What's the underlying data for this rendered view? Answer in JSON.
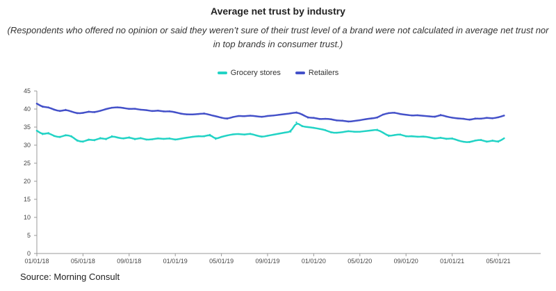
{
  "title": "Average net trust by industry",
  "subtitle": "(Respondents who offered no opinion or said they weren’t sure of their trust level of a brand were not calculated in average net trust nor in top brands in consumer trust.)",
  "source": "Source: Morning Consult",
  "colors": {
    "grocery": "#22d3c5",
    "retailers": "#4451c9",
    "axis": "#999999"
  },
  "legend": [
    {
      "name": "Grocery stores",
      "color": "#22d3c5"
    },
    {
      "name": "Retailers",
      "color": "#4451c9"
    }
  ],
  "chart_data": {
    "type": "line",
    "title": "Average net trust by industry",
    "xlabel": "",
    "ylabel": "",
    "ylim": [
      0,
      45
    ],
    "y_ticks": [
      0,
      5,
      10,
      15,
      20,
      25,
      30,
      35,
      40,
      45
    ],
    "x_tick_labels": [
      "01/01/18",
      "05/01/18",
      "09/01/18",
      "01/01/19",
      "05/01/19",
      "09/01/19",
      "01/01/20",
      "05/01/20",
      "09/01/20",
      "01/01/21",
      "05/01/21"
    ],
    "x_range_months": [
      0,
      40.5
    ],
    "grid": false,
    "legend_position": "top-center",
    "series": [
      {
        "name": "Grocery stores",
        "x_months": [
          0,
          0.5,
          1,
          1.5,
          2,
          2.5,
          3,
          3.5,
          4,
          4.5,
          5,
          5.5,
          6,
          6.5,
          7,
          7.5,
          8,
          8.5,
          9,
          9.5,
          10,
          10.5,
          11,
          11.5,
          12,
          12.5,
          13,
          13.5,
          14,
          14.5,
          15,
          15.5,
          16,
          16.5,
          17,
          17.5,
          18,
          18.5,
          19,
          19.5,
          20,
          20.5,
          21,
          21.5,
          22,
          22.5,
          23,
          23.5,
          24,
          24.5,
          25,
          25.5,
          26,
          26.5,
          27,
          27.5,
          28,
          28.5,
          29,
          29.5,
          30,
          30.5,
          31,
          31.5,
          32,
          32.5,
          33,
          33.5,
          34,
          34.5,
          35,
          35.5,
          36,
          36.5,
          37,
          37.5,
          38,
          38.5,
          39,
          39.5,
          40,
          40.5
        ],
        "values": [
          34,
          33,
          33.4,
          32.5,
          32.2,
          32.8,
          32.5,
          31.2,
          30.9,
          31.6,
          31.3,
          32,
          31.6,
          32.5,
          32.1,
          31.8,
          32.2,
          31.6,
          32,
          31.5,
          31.6,
          31.9,
          31.7,
          31.9,
          31.5,
          31.8,
          32.1,
          32.3,
          32.5,
          32.4,
          32.9,
          31.7,
          32.3,
          32.7,
          33,
          33.1,
          32.9,
          33.2,
          32.7,
          32.3,
          32.6,
          32.9,
          33.2,
          33.5,
          33.7,
          36.3,
          35.2,
          35,
          34.8,
          34.5,
          34.2,
          33.5,
          33.4,
          33.6,
          33.9,
          33.7,
          33.7,
          33.9,
          34.1,
          34.3,
          33.5,
          32.5,
          32.8,
          33,
          32.4,
          32.5,
          32.3,
          32.4,
          32.2,
          31.8,
          32.1,
          31.7,
          31.9,
          31.3,
          30.9,
          30.8,
          31.3,
          31.5,
          30.9,
          31.3,
          30.9,
          31.9
        ]
      },
      {
        "name": "Retailers",
        "x_months": [
          0,
          0.5,
          1,
          1.5,
          2,
          2.5,
          3,
          3.5,
          4,
          4.5,
          5,
          5.5,
          6,
          6.5,
          7,
          7.5,
          8,
          8.5,
          9,
          9.5,
          10,
          10.5,
          11,
          11.5,
          12,
          12.5,
          13,
          13.5,
          14,
          14.5,
          15,
          15.5,
          16,
          16.5,
          17,
          17.5,
          18,
          18.5,
          19,
          19.5,
          20,
          20.5,
          21,
          21.5,
          22,
          22.5,
          23,
          23.5,
          24,
          24.5,
          25,
          25.5,
          26,
          26.5,
          27,
          27.5,
          28,
          28.5,
          29,
          29.5,
          30,
          30.5,
          31,
          31.5,
          32,
          32.5,
          33,
          33.5,
          34,
          34.5,
          35,
          35.5,
          36,
          36.5,
          37,
          37.5,
          38,
          38.5,
          39,
          39.5,
          40,
          40.5
        ],
        "values": [
          41.5,
          40.6,
          40.5,
          39.8,
          39.4,
          39.8,
          39.3,
          38.8,
          38.9,
          39.3,
          39.1,
          39.5,
          40,
          40.4,
          40.5,
          40.3,
          40,
          40.1,
          39.8,
          39.7,
          39.4,
          39.6,
          39.3,
          39.4,
          39.1,
          38.7,
          38.5,
          38.5,
          38.6,
          38.8,
          38.4,
          38,
          37.6,
          37.3,
          37.8,
          38.1,
          38,
          38.2,
          38,
          37.8,
          38.1,
          38.2,
          38.4,
          38.6,
          38.8,
          39.1,
          38.5,
          37.6,
          37.6,
          37.2,
          37.3,
          37.2,
          36.8,
          36.8,
          36.5,
          36.7,
          36.9,
          37.2,
          37.4,
          37.6,
          38.5,
          38.9,
          39,
          38.6,
          38.4,
          38.2,
          38.3,
          38.1,
          38,
          37.8,
          38.4,
          37.9,
          37.6,
          37.4,
          37.3,
          37,
          37.4,
          37.3,
          37.6,
          37.4,
          37.7,
          38.2
        ]
      }
    ]
  }
}
